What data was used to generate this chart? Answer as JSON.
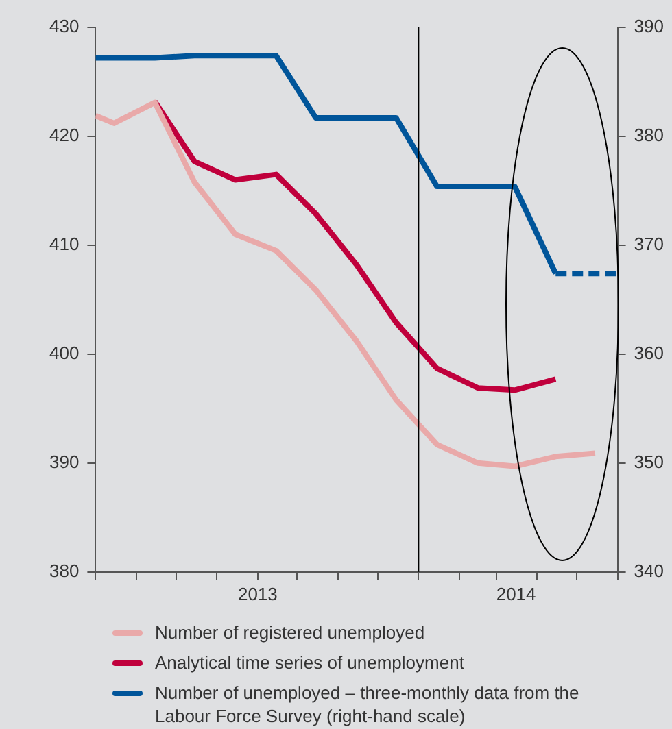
{
  "chart_data": {
    "type": "line",
    "x": [
      "2013-05-01",
      "2013-05-15",
      "2013-06-15",
      "2013-07-15",
      "2013-08-15",
      "2013-09-15",
      "2013-10-15",
      "2013-11-15",
      "2013-12-15",
      "2014-01-15",
      "2014-02-15",
      "2014-03-15",
      "2014-04-15",
      "2014-05-15"
    ],
    "series": [
      {
        "name": "Number of registered unemployed",
        "color": "#e9a9a9",
        "values": [
          421.9,
          421.2,
          423.1,
          415.8,
          411.0,
          409.5,
          405.9,
          401.2,
          395.8,
          391.7,
          390.0,
          389.7,
          390.6,
          390.9
        ]
      },
      {
        "name": "Analytical time series of unemployment",
        "color": "#c0003c",
        "values": [
          null,
          null,
          423.2,
          417.7,
          416.0,
          416.5,
          412.9,
          408.2,
          402.9,
          398.7,
          396.9,
          396.7,
          397.7,
          null
        ]
      },
      {
        "name": "Number of unemployed – three-monthly data from the Labour Force Survey (right-hand scale)",
        "color": "#00559a",
        "axis": "y2",
        "values": [
          387.2,
          387.2,
          387.2,
          387.4,
          387.4,
          387.4,
          381.7,
          381.7,
          381.7,
          375.4,
          375.4,
          375.4,
          367.4,
          null
        ]
      },
      {
        "color": "#00559a",
        "axis": "y2",
        "line_style": "dashed",
        "x": [
          "2014-04-15",
          "2014-06-01"
        ],
        "values": [
          367.4,
          367.4
        ]
      }
    ],
    "xlim": [
      "2013-05-01",
      "2014-06-01"
    ],
    "xticks": [
      {
        "value": "2013-05-01",
        "label": null
      },
      {
        "value": "2013-06-01",
        "label": null
      },
      {
        "value": "2013-07-01",
        "label": null
      },
      {
        "value": "2013-08-01",
        "label": null
      },
      {
        "value": "2013-09-01",
        "label": "2013"
      },
      {
        "value": "2013-10-01",
        "label": null
      },
      {
        "value": "2013-11-01",
        "label": null
      },
      {
        "value": "2013-12-01",
        "label": null
      },
      {
        "value": "2014-01-01",
        "label": null
      },
      {
        "value": "2014-02-01",
        "label": null
      },
      {
        "value": "2014-03-01",
        "label": null
      },
      {
        "value": "2014-03-16",
        "label": "2014"
      },
      {
        "value": "2014-04-01",
        "label": null
      },
      {
        "value": "2014-05-01",
        "label": null
      },
      {
        "value": "2014-06-01",
        "label": null
      }
    ],
    "ylim": [
      380,
      430
    ],
    "yticks": [
      380,
      390,
      400,
      410,
      420,
      430
    ],
    "y2lim": [
      340,
      390
    ],
    "y2ticks": [
      340,
      350,
      360,
      370,
      380,
      390
    ],
    "ref_lines": [
      {
        "axis": "x",
        "value": "2014-01-01",
        "color": "#000000"
      }
    ],
    "legend": "bottom",
    "marker": "none",
    "line_style": "solid"
  }
}
